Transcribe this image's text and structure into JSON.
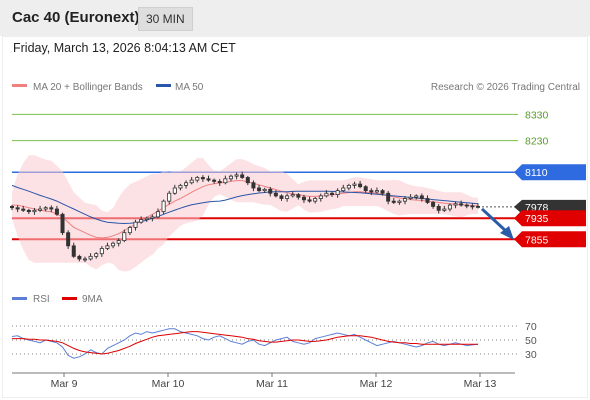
{
  "header": {
    "title": "Cac 40 (Euronext)",
    "timeframe": "30 MIN"
  },
  "datetime": "Friday, March 13, 2026 8:04:13 AM CET",
  "legend": {
    "ma20": "MA 20 + Bollinger Bands",
    "ma50": "MA 50",
    "credit": "Research © 2026 Trading Central",
    "rsi": "RSI",
    "ma9": "9MA"
  },
  "colors": {
    "ma20": "#f08080",
    "ma50": "#2a55a8",
    "target": "#7cbf4a",
    "pivot": "#2f6be0",
    "support": "#e00000",
    "current": "#333333",
    "rsi": "#5b7fd6",
    "rsi_ma": "#e00000",
    "arrow": "#2a5ca8"
  },
  "chart_data": [
    {
      "type": "line",
      "title": "",
      "note": "candlestick price chart",
      "x_ticks": [
        "Mar 9",
        "Mar 10",
        "Mar 11",
        "Mar 12",
        "Mar 13"
      ],
      "ylim": [
        7700,
        8400
      ],
      "levels": [
        {
          "value": 8330,
          "label": "8330",
          "kind": "target"
        },
        {
          "value": 8230,
          "label": "8230",
          "kind": "target"
        },
        {
          "value": 8110,
          "label": "8110",
          "kind": "pivot"
        },
        {
          "value": 7978,
          "label": "7978",
          "kind": "current"
        },
        {
          "value": 7935,
          "label": "7935",
          "kind": "support"
        },
        {
          "value": 7855,
          "label": "7855",
          "kind": "support"
        }
      ],
      "price_close": [
        7975,
        7970,
        7965,
        7960,
        7965,
        7970,
        7975,
        7970,
        7950,
        7880,
        7830,
        7790,
        7780,
        7780,
        7790,
        7800,
        7820,
        7830,
        7840,
        7850,
        7880,
        7900,
        7920,
        7930,
        7935,
        7940,
        7960,
        8000,
        8030,
        8050,
        8060,
        8070,
        8080,
        8090,
        8085,
        8080,
        8075,
        8070,
        8085,
        8095,
        8100,
        8090,
        8070,
        8050,
        8040,
        8045,
        8030,
        8020,
        8010,
        8020,
        8025,
        8015,
        8005,
        8000,
        8010,
        8020,
        8030,
        8025,
        8040,
        8050,
        8060,
        8065,
        8055,
        8040,
        8035,
        8040,
        8030,
        8000,
        7995,
        8000,
        8010,
        8015,
        8020,
        8010,
        7995,
        7980,
        7965,
        7970,
        7985,
        7990,
        7985,
        7982,
        7980,
        7978
      ],
      "series": [
        {
          "name": "MA 20",
          "values": [
            7985,
            7984,
            7980,
            7975,
            7970,
            7966,
            7962,
            7960,
            7950,
            7940,
            7920,
            7900,
            7890,
            7880,
            7870,
            7862,
            7860,
            7862,
            7868,
            7876,
            7888,
            7900,
            7912,
            7925,
            7938,
            7950,
            7962,
            7975,
            7988,
            8000,
            8010,
            8022,
            8034,
            8045,
            8055,
            8062,
            8066,
            8070,
            8072,
            8075,
            8078,
            8078,
            8074,
            8068,
            8062,
            8056,
            8050,
            8044,
            8038,
            8032,
            8028,
            8024,
            8021,
            8018,
            8018,
            8019,
            8022,
            8024,
            8026,
            8030,
            8033,
            8036,
            8036,
            8034,
            8032,
            8030,
            8026,
            8020,
            8016,
            8012,
            8009,
            8006,
            8004,
            8003,
            8000,
            7998,
            7995,
            7992,
            7990,
            7988,
            7986,
            7985,
            7983,
            7982
          ]
        },
        {
          "name": "MA 50",
          "values": [
            8060,
            8052,
            8045,
            8038,
            8030,
            8022,
            8015,
            8008,
            8000,
            7990,
            7980,
            7970,
            7960,
            7950,
            7940,
            7932,
            7925,
            7920,
            7918,
            7916,
            7915,
            7916,
            7918,
            7922,
            7928,
            7935,
            7942,
            7950,
            7958,
            7966,
            7973,
            7980,
            7986,
            7990,
            7994,
            7997,
            7999,
            8000,
            8004,
            8010,
            8016,
            8021,
            8025,
            8028,
            8031,
            8033,
            8035,
            8036,
            8036,
            8036,
            8037,
            8038,
            8038,
            8038,
            8038,
            8038,
            8038,
            8037,
            8036,
            8035,
            8034,
            8033,
            8032,
            8030,
            8028,
            8026,
            8024,
            8022,
            8020,
            8018,
            8016,
            8014,
            8012,
            8010,
            8008,
            8006,
            8004,
            8002,
            8000,
            7998,
            7996,
            7994,
            7992,
            7990
          ]
        }
      ]
    },
    {
      "type": "line",
      "title": "",
      "ylim": [
        10,
        90
      ],
      "y_ticks": [
        70,
        50,
        30
      ],
      "series": [
        {
          "name": "RSI",
          "values": [
            55,
            56,
            52,
            50,
            48,
            46,
            50,
            48,
            46,
            40,
            28,
            24,
            26,
            30,
            36,
            32,
            30,
            38,
            42,
            46,
            50,
            56,
            60,
            58,
            62,
            60,
            62,
            64,
            66,
            66,
            62,
            60,
            58,
            56,
            52,
            50,
            54,
            56,
            52,
            48,
            46,
            44,
            48,
            50,
            44,
            42,
            46,
            50,
            52,
            54,
            48,
            46,
            44,
            46,
            52,
            54,
            56,
            58,
            60,
            58,
            56,
            58,
            54,
            50,
            46,
            42,
            44,
            46,
            48,
            46,
            44,
            42,
            40,
            42,
            46,
            48,
            44,
            42,
            44,
            46,
            44,
            42,
            43,
            44
          ]
        },
        {
          "name": "9MA",
          "values": [
            52,
            52,
            52,
            51,
            51,
            50,
            50,
            49,
            48,
            46,
            42,
            38,
            35,
            33,
            32,
            31,
            30,
            31,
            33,
            35,
            38,
            41,
            45,
            48,
            51,
            54,
            56,
            57,
            58,
            59,
            60,
            61,
            62,
            62,
            61,
            60,
            59,
            58,
            57,
            56,
            55,
            54,
            52,
            51,
            49,
            48,
            47,
            47,
            48,
            49,
            50,
            50,
            49,
            48,
            48,
            49,
            50,
            52,
            54,
            55,
            56,
            56,
            56,
            55,
            54,
            52,
            50,
            48,
            47,
            46,
            46,
            45,
            45,
            44,
            44,
            44,
            44,
            44,
            44,
            44,
            44,
            44,
            44,
            44
          ]
        }
      ]
    }
  ]
}
